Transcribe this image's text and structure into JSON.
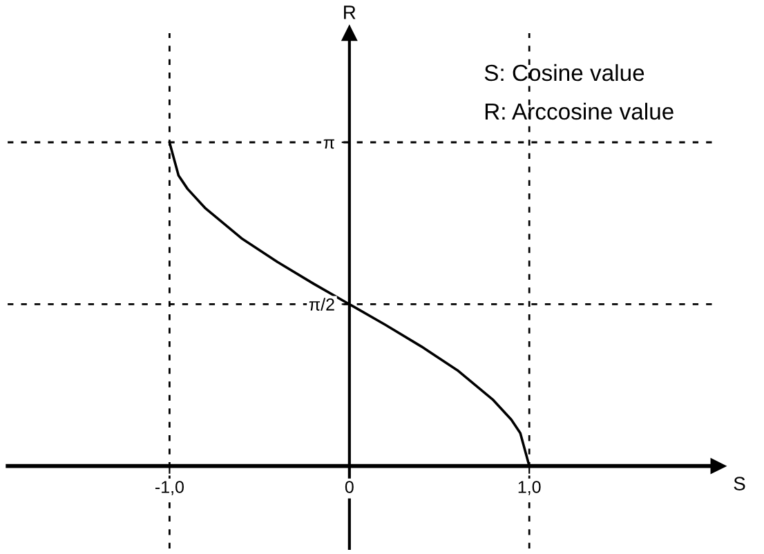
{
  "chart_data": {
    "type": "line",
    "xlabel": "S",
    "ylabel": "R",
    "x": [
      -1,
      -0.95,
      -0.9,
      -0.8,
      -0.6,
      -0.4,
      -0.2,
      0,
      0.2,
      0.4,
      0.6,
      0.8,
      0.9,
      0.95,
      1
    ],
    "series": [
      {
        "color": "#000000",
        "values": [
          3.14,
          2.82,
          2.69,
          2.5,
          2.21,
          1.98,
          1.77,
          1.57,
          1.37,
          1.16,
          0.93,
          0.64,
          0.45,
          0.32,
          0
        ]
      }
    ],
    "xlim": [
      -1.9,
      2.05
    ],
    "ylim": [
      -0.8,
      4.2
    ],
    "xticks": [
      {
        "value": -1,
        "label": "-1,0"
      },
      0,
      {
        "value": 1,
        "label": "1,0"
      }
    ],
    "yticks": [
      {
        "value": 3.14159,
        "label": "π"
      },
      {
        "value": 1.5708,
        "label": "π/2"
      }
    ],
    "ref_lines": [
      {
        "axis": "x",
        "value": -1,
        "line_style": "dotted",
        "color": "#000000"
      },
      {
        "axis": "x",
        "value": 1,
        "line_style": "dotted",
        "color": "#000000"
      },
      {
        "axis": "y",
        "value": 3.14159,
        "line_style": "dotted",
        "color": "#000000"
      },
      {
        "axis": "y",
        "value": 1.5708,
        "line_style": "dotted",
        "color": "#000000"
      }
    ],
    "annotations": [
      "S: Cosine value",
      "R: Arccosine value"
    ],
    "grid": false,
    "legend": false,
    "marker": "none",
    "line_style": "solid"
  }
}
